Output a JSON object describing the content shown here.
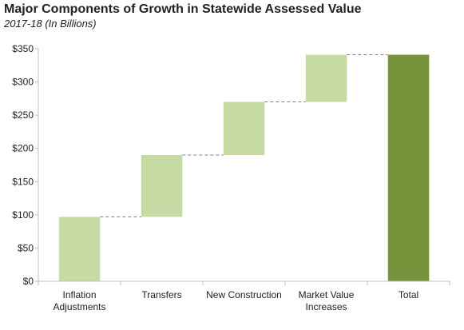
{
  "chart_data": {
    "type": "bar",
    "subtype": "waterfall",
    "title": "Major Components of Growth in Statewide Assessed Value",
    "subtitle_prefix": "2017-18",
    "subtitle_suffix": "(In Billions)",
    "categories": [
      [
        "Inflation",
        "Adjustments"
      ],
      [
        "Transfers"
      ],
      [
        "New Construction"
      ],
      [
        "Market Value",
        "Increases"
      ],
      [
        "Total"
      ]
    ],
    "values": [
      97,
      93,
      80,
      71,
      341
    ],
    "bar_ranges": [
      [
        0,
        97
      ],
      [
        97,
        190
      ],
      [
        190,
        270
      ],
      [
        270,
        341
      ],
      [
        0,
        341
      ]
    ],
    "ylim": [
      0,
      350
    ],
    "yticks": [
      0,
      50,
      100,
      150,
      200,
      250,
      300,
      350
    ],
    "ytick_labels": [
      "$0",
      "$50",
      "$100",
      "$150",
      "$200",
      "$250",
      "$300",
      "$350"
    ],
    "colors": {
      "component": "#c5dba3",
      "total": "#77933c",
      "connector": "#808080",
      "axis": "#bfbfbf"
    },
    "grid": false
  }
}
